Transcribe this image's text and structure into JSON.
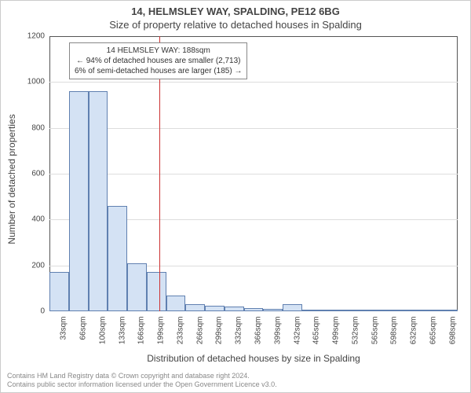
{
  "header": {
    "line1": "14, HELMSLEY WAY, SPALDING, PE12 6BG",
    "line2": "Size of property relative to detached houses in Spalding"
  },
  "chart": {
    "type": "histogram",
    "ylabel": "Number of detached properties",
    "xlabel": "Distribution of detached houses by size in Spalding",
    "ylim": [
      0,
      1200
    ],
    "ytick_step": 200,
    "yticks": [
      0,
      200,
      400,
      600,
      800,
      1000,
      1200
    ],
    "x_categories": [
      "33sqm",
      "66sqm",
      "100sqm",
      "133sqm",
      "166sqm",
      "199sqm",
      "233sqm",
      "266sqm",
      "299sqm",
      "332sqm",
      "366sqm",
      "399sqm",
      "432sqm",
      "465sqm",
      "499sqm",
      "532sqm",
      "565sqm",
      "598sqm",
      "632sqm",
      "665sqm",
      "698sqm"
    ],
    "values": [
      170,
      960,
      960,
      460,
      210,
      170,
      70,
      30,
      25,
      20,
      15,
      10,
      30,
      3,
      2,
      2,
      1,
      1,
      1,
      1,
      1
    ],
    "bar_fill": "#d4e2f4",
    "bar_border": "#6080b0",
    "grid_color": "#dddddd",
    "plot_border_color": "#555555",
    "background_color": "#ffffff",
    "bar_width_ratio": 1.0,
    "label_fontsize": 12,
    "tick_fontsize": 10,
    "marker": {
      "position_sqm": 188,
      "color": "#cc3333",
      "annotation": {
        "line1": "14 HELMSLEY WAY: 188sqm",
        "line2": "← 94% of detached houses are smaller (2,713)",
        "line3": "6% of semi-detached houses are larger (185) →"
      }
    }
  },
  "footer": {
    "line1": "Contains HM Land Registry data © Crown copyright and database right 2024.",
    "line2": "Contains public sector information licensed under the Open Government Licence v3.0."
  }
}
